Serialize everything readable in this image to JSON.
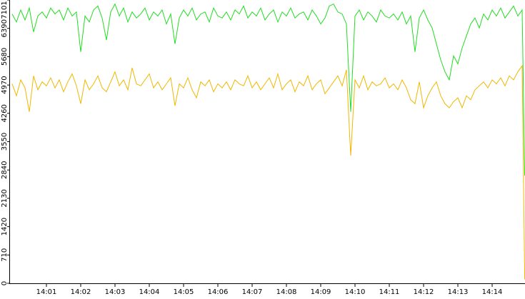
{
  "chart_data": {
    "type": "line",
    "x": [
      0,
      0.125,
      0.25,
      0.375,
      0.5,
      0.625,
      0.75,
      0.875,
      1,
      1.125,
      1.25,
      1.375,
      1.5,
      1.625,
      1.75,
      1.875,
      2,
      2.125,
      2.25,
      2.375,
      2.5,
      2.625,
      2.75,
      2.875,
      3,
      3.125,
      3.25,
      3.375,
      3.5,
      3.625,
      3.75,
      3.875,
      4,
      4.125,
      4.25,
      4.375,
      4.5,
      4.625,
      4.75,
      4.875,
      5,
      5.125,
      5.25,
      5.375,
      5.5,
      5.625,
      5.75,
      5.875,
      6,
      6.125,
      6.25,
      6.375,
      6.5,
      6.625,
      6.75,
      6.875,
      7,
      7.125,
      7.25,
      7.375,
      7.5,
      7.625,
      7.75,
      7.875,
      8,
      8.125,
      8.25,
      8.375,
      8.5,
      8.625,
      8.75,
      8.875,
      9,
      9.125,
      9.25,
      9.375,
      9.5,
      9.625,
      9.75,
      9.875,
      10,
      10.125,
      10.25,
      10.375,
      10.5,
      10.625,
      10.75,
      10.875,
      11,
      11.125,
      11.25,
      11.375,
      11.5,
      11.625,
      11.75,
      11.875,
      12,
      12.125,
      12.25,
      12.375,
      12.5,
      12.625,
      12.75,
      12.875,
      13,
      13.125,
      13.25,
      13.375,
      13.5,
      13.625,
      13.75,
      13.875,
      14,
      14.125,
      14.25,
      14.375,
      14.5,
      14.625,
      14.75,
      14.875,
      14.95
    ],
    "series": [
      {
        "color": "#22dd22",
        "values": [
          6750,
          6550,
          6850,
          6600,
          6900,
          6300,
          6700,
          6800,
          6650,
          6900,
          6750,
          6850,
          6600,
          6900,
          6700,
          6800,
          5800,
          6700,
          6550,
          6850,
          6950,
          6650,
          6100,
          6800,
          7000,
          6700,
          6900,
          6550,
          6800,
          6650,
          6750,
          6900,
          6600,
          6800,
          6700,
          6850,
          6500,
          6750,
          6000,
          6650,
          6850,
          6700,
          6900,
          6600,
          6750,
          6800,
          6550,
          6900,
          6700,
          6650,
          6800,
          6600,
          6850,
          6750,
          6950,
          6650,
          6800,
          6700,
          6900,
          6600,
          6750,
          6850,
          6550,
          6800,
          6700,
          6900,
          6650,
          6750,
          6800,
          6600,
          6850,
          6700,
          6500,
          6650,
          6950,
          7000,
          6800,
          6750,
          6500,
          4300,
          6700,
          6850,
          6600,
          6800,
          6700,
          6550,
          6850,
          6700,
          6650,
          6750,
          6600,
          6800,
          6500,
          6700,
          5800,
          6650,
          6850,
          6600,
          6400,
          6000,
          5600,
          5300,
          5100,
          5700,
          5500,
          5900,
          6200,
          6500,
          6650,
          6400,
          6750,
          6600,
          6850,
          6700,
          6900,
          6650,
          6800,
          6950,
          6700,
          6850,
          2700
        ]
      },
      {
        "color": "#f0b800",
        "values": [
          5000,
          4700,
          5100,
          4900,
          4300,
          5200,
          4850,
          5050,
          4950,
          5150,
          4900,
          5100,
          4800,
          5050,
          5250,
          4950,
          4500,
          5100,
          4850,
          5000,
          5200,
          4900,
          4800,
          5050,
          5300,
          4950,
          5100,
          4850,
          5400,
          5000,
          4950,
          5100,
          5250,
          4900,
          5050,
          4850,
          5000,
          5150,
          4450,
          5000,
          4900,
          5150,
          4850,
          4650,
          5050,
          4950,
          5100,
          4800,
          5000,
          4900,
          5050,
          4850,
          5100,
          5000,
          4950,
          5200,
          4900,
          5050,
          4850,
          5000,
          5150,
          4900,
          5250,
          4850,
          5000,
          5100,
          4800,
          5050,
          4950,
          5200,
          4850,
          5000,
          5100,
          4750,
          4900,
          5050,
          5200,
          4950,
          5350,
          3200,
          5100,
          4900,
          5200,
          4850,
          5050,
          4950,
          5000,
          5150,
          4900,
          5000,
          4850,
          5100,
          4900,
          4600,
          4500,
          5050,
          4400,
          4700,
          4900,
          5050,
          4700,
          4500,
          4400,
          4550,
          4650,
          4400,
          4700,
          4600,
          4850,
          4950,
          5050,
          4900,
          5100,
          5000,
          5150,
          4950,
          5200,
          5100,
          5300,
          5450,
          100
        ]
      }
    ],
    "xlim": [
      -0.0625,
      14.958
    ],
    "xticks": [
      {
        "value": 1,
        "label": "14:01"
      },
      {
        "value": 2,
        "label": "14:02"
      },
      {
        "value": 3,
        "label": "14:03"
      },
      {
        "value": 4,
        "label": "14:04"
      },
      {
        "value": 5,
        "label": "14:05"
      },
      {
        "value": 6,
        "label": "14:06"
      },
      {
        "value": 7,
        "label": "14:07"
      },
      {
        "value": 8,
        "label": "14:08"
      },
      {
        "value": 9,
        "label": "14:09"
      },
      {
        "value": 10,
        "label": "14:10"
      },
      {
        "value": 11,
        "label": "14:11"
      },
      {
        "value": 12,
        "label": "14:12"
      },
      {
        "value": 13,
        "label": "14:13"
      },
      {
        "value": 14,
        "label": "14:14"
      }
    ],
    "ylim": [
      0,
      7101
    ],
    "yticks": [
      0,
      710,
      1420,
      2130,
      2840,
      3550,
      4260,
      4970,
      5680,
      6390,
      7101
    ]
  }
}
